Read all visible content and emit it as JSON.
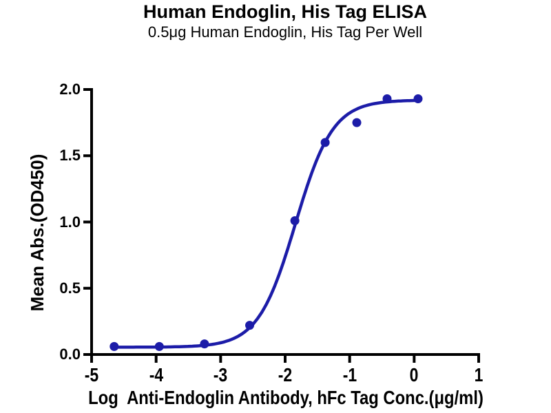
{
  "page": {
    "background": "#ffffff"
  },
  "chart_data": {
    "type": "line",
    "title": "Human Endoglin, His Tag ELISA",
    "subtitle": "0.5μg Human Endoglin, His Tag Per Well",
    "xlabel": "Log  Anti-Endoglin Antibody, hFc Tag Conc.(μg/ml)",
    "ylabel": "Mean Abs.(OD450)",
    "xlim": [
      -5,
      1
    ],
    "ylim": [
      0,
      2
    ],
    "x_ticks": [
      -5,
      -4,
      -3,
      -2,
      -1,
      0,
      1
    ],
    "x_tick_labels": [
      "-5",
      "-4",
      "-3",
      "-2",
      "-1",
      "0",
      "1"
    ],
    "y_ticks": [
      0,
      0.5,
      1,
      1.5,
      2
    ],
    "y_tick_labels": [
      "0.0",
      "0.5",
      "1.0",
      "1.5",
      "2.0"
    ],
    "grid": false,
    "legend_position": "none",
    "series": [
      {
        "name": "Anti-Endoglin Antibody, hFc Tag",
        "marker": "circle",
        "color": "#1C1CA8",
        "points": [
          {
            "x": -4.65,
            "y": 0.06
          },
          {
            "x": -3.95,
            "y": 0.06
          },
          {
            "x": -3.25,
            "y": 0.08
          },
          {
            "x": -2.55,
            "y": 0.22
          },
          {
            "x": -1.85,
            "y": 1.01
          },
          {
            "x": -1.38,
            "y": 1.6
          },
          {
            "x": -0.89,
            "y": 1.75
          },
          {
            "x": -0.42,
            "y": 1.93
          },
          {
            "x": 0.06,
            "y": 1.93
          }
        ],
        "fit_curve": {
          "model": "4PL sigmoidal",
          "bottom": 0.055,
          "top": 1.92,
          "log_ec50": -1.84,
          "hill_slope": 1.5,
          "x_start": -4.65,
          "x_end": 0.06
        }
      }
    ],
    "colors": {
      "curve": "#1C1CA8",
      "axis": "#000000",
      "text": "#000000",
      "background": "#ffffff"
    }
  }
}
